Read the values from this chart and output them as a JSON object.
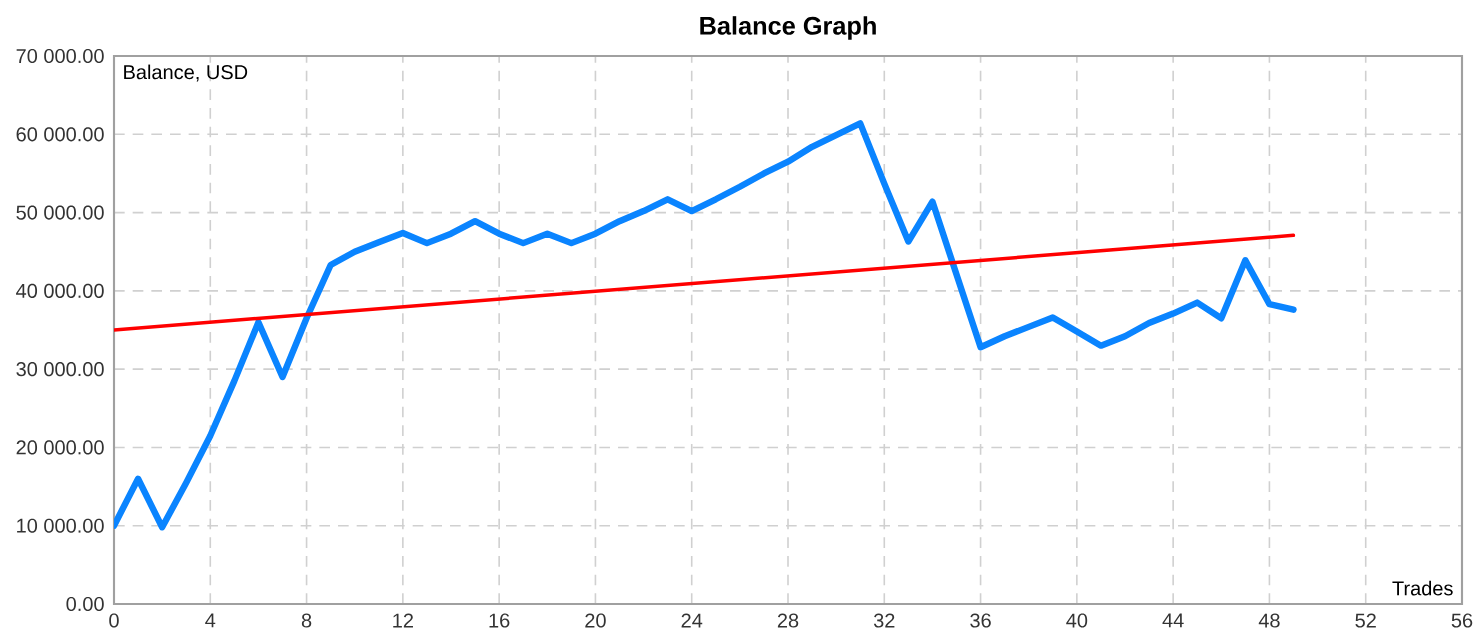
{
  "chart_data": {
    "type": "line",
    "title": "Balance Graph",
    "xlabel": "Trades",
    "ylabel": "Balance, USD",
    "xlim": [
      0,
      56
    ],
    "xticks": [
      0,
      4,
      8,
      12,
      16,
      20,
      24,
      28,
      32,
      36,
      40,
      44,
      48,
      52,
      56
    ],
    "ylim": [
      0,
      70000
    ],
    "yticks": [
      {
        "value": 0,
        "label": "0.00"
      },
      {
        "value": 10000,
        "label": "10 000.00"
      },
      {
        "value": 20000,
        "label": "20 000.00"
      },
      {
        "value": 30000,
        "label": "30 000.00"
      },
      {
        "value": 40000,
        "label": "40 000.00"
      },
      {
        "value": 50000,
        "label": "50 000.00"
      },
      {
        "value": 60000,
        "label": "60 000.00"
      },
      {
        "value": 70000,
        "label": "70 000.00"
      }
    ],
    "grid": true,
    "legend": false,
    "line_style": "solid",
    "series": [
      {
        "color": "#0a84ff",
        "x": [
          0,
          1,
          2,
          3,
          4,
          5,
          6,
          7,
          8,
          9,
          10,
          11,
          12,
          13,
          14,
          15,
          16,
          17,
          18,
          19,
          20,
          21,
          22,
          23,
          24,
          25,
          26,
          27,
          28,
          29,
          30,
          31,
          32,
          33,
          34,
          35,
          36,
          37,
          38,
          39,
          40,
          41,
          42,
          43,
          44,
          45,
          46,
          47,
          48,
          49
        ],
        "values": [
          10000,
          16000,
          9800,
          15500,
          21500,
          28500,
          36000,
          29000,
          36500,
          43300,
          45000,
          46200,
          47400,
          46100,
          47300,
          48900,
          47300,
          46100,
          47300,
          46100,
          47300,
          48900,
          50200,
          51700,
          50200,
          51700,
          53300,
          55000,
          56500,
          58400,
          59900,
          61400,
          53700,
          46300,
          51400,
          42100,
          32800,
          34200,
          35400,
          36600,
          34800,
          33000,
          34200,
          35900,
          37100,
          38500,
          36500,
          43900,
          38300,
          37600
        ]
      },
      {
        "type": "line",
        "color": "#ff0000",
        "x": [
          0,
          49
        ],
        "values": [
          35000,
          47100
        ]
      }
    ]
  }
}
